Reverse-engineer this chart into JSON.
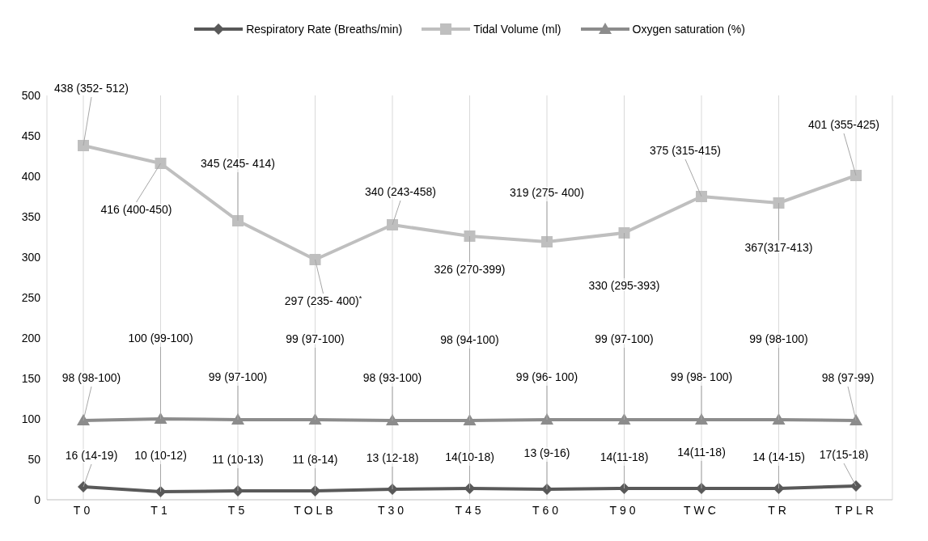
{
  "chart_data": {
    "type": "line",
    "categories": [
      "T0",
      "T1",
      "T5",
      "TOLB",
      "T30",
      "T45",
      "T60",
      "T90",
      "TWC",
      "TR",
      "TPLR"
    ],
    "series": [
      {
        "name": "Respiratory Rate (Breaths/min)",
        "color": "#595959",
        "marker": "diamond",
        "values": [
          16,
          10,
          11,
          11,
          13,
          14,
          13,
          14,
          14,
          14,
          17
        ],
        "value_labels": [
          "16 (14-19)",
          "10 (10-12)",
          "11 (10-13)",
          "11 (8-14)",
          "13 (12-18)",
          "14(10-18)",
          "13 (9-16)",
          "14(11-18)",
          "14(11-18)",
          "14 (14-15)",
          "17(15-18)"
        ]
      },
      {
        "name": "Tidal Volume (ml)",
        "color": "#bfbfbf",
        "marker": "square",
        "values": [
          438,
          416,
          345,
          297,
          340,
          326,
          319,
          330,
          375,
          367,
          401
        ],
        "value_labels": [
          "438 (352- 512)",
          "416 (400-450)",
          "345 (245- 414)",
          "297 (235- 400)$^{*}$",
          "340 (243-458)",
          "326 (270-399)",
          "319 (275- 400)",
          "330 (295-393)",
          "375 (315-415)",
          "367(317-413)",
          "401 (355-425)"
        ]
      },
      {
        "name": "Oxygen saturation (%)",
        "color": "#8c8c8c",
        "marker": "triangle",
        "values": [
          98,
          100,
          99,
          99,
          98,
          98,
          99,
          99,
          99,
          99,
          98
        ],
        "value_labels": [
          "98 (98-100)",
          "100 (99-100)",
          "99 (97-100)",
          "99 (97-100)",
          "98 (93-100)",
          "98 (94-100)",
          "99 (96- 100)",
          "99 (97-100)",
          "99 (98- 100)",
          "99 (98-100)",
          "98 (97-99)"
        ]
      }
    ],
    "ylim": [
      0,
      500
    ],
    "yticks": [
      0,
      50,
      100,
      150,
      200,
      250,
      300,
      350,
      400,
      450,
      500
    ],
    "grid": "x",
    "legend": "top"
  }
}
